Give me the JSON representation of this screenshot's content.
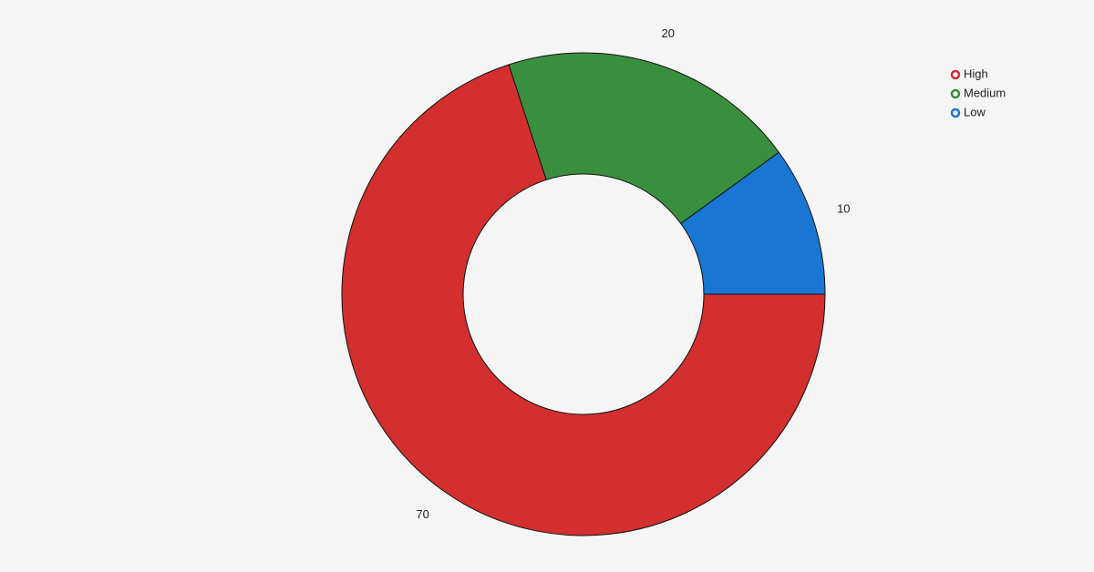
{
  "chart_data": {
    "type": "donut",
    "categories": [
      "High",
      "Medium",
      "Low"
    ],
    "values": [
      70,
      20,
      10
    ],
    "colors": [
      "#d32f2f",
      "#3a8f3e",
      "#1976d2"
    ],
    "legend": "top-right"
  }
}
